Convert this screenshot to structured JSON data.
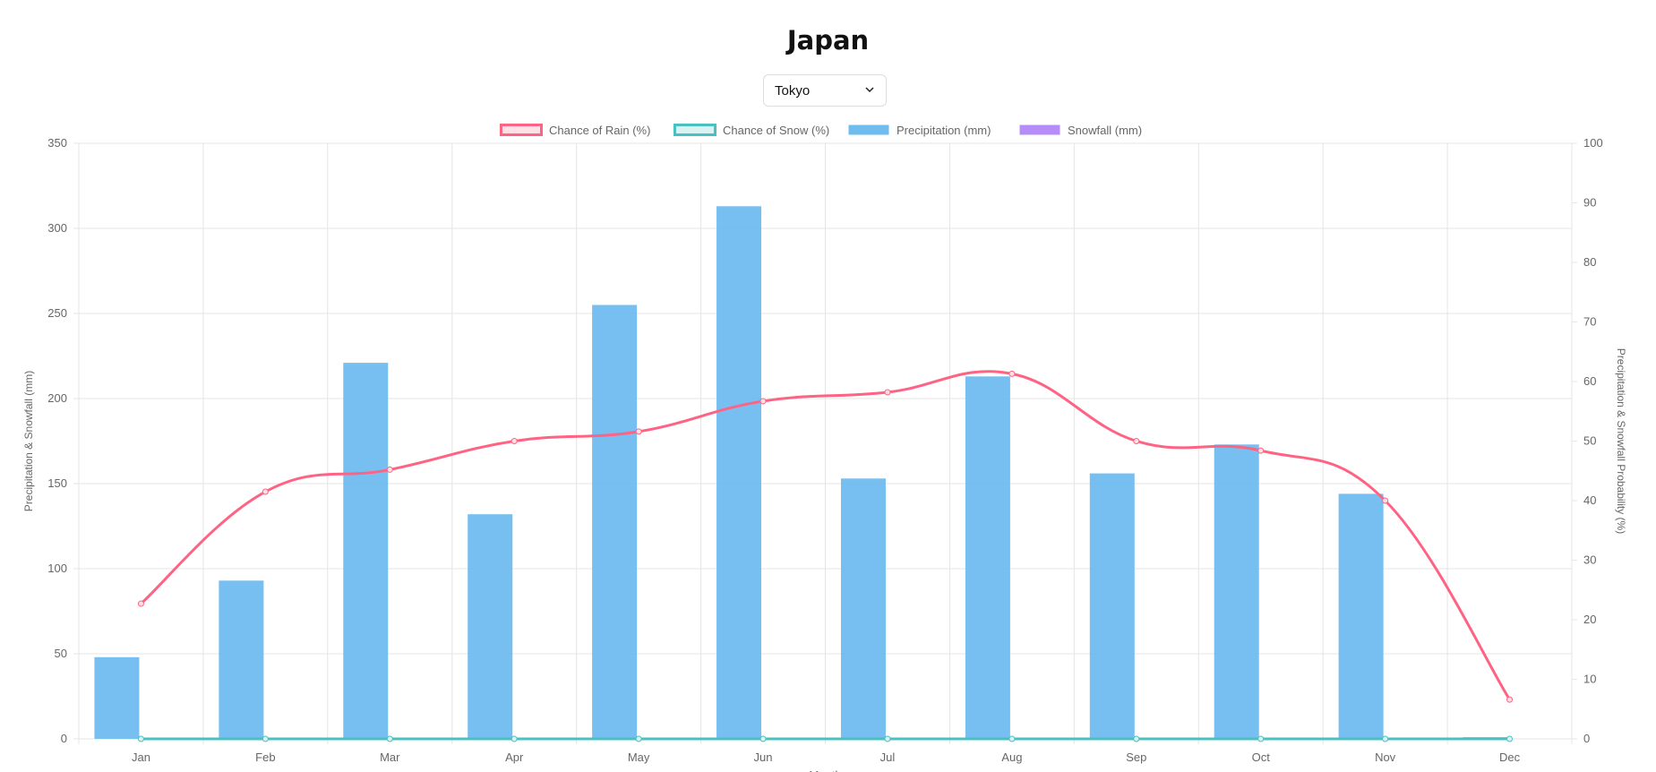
{
  "header": {
    "title": "Japan"
  },
  "city_select": {
    "value": "Tokyo"
  },
  "chart_data": {
    "type": "bar",
    "categories": [
      "Jan",
      "Feb",
      "Mar",
      "Apr",
      "May",
      "Jun",
      "Jul",
      "Aug",
      "Sep",
      "Oct",
      "Nov",
      "Dec"
    ],
    "series": [
      {
        "name": "Chance of Rain (%)",
        "type": "line",
        "axis": "right",
        "color": "#ff6384",
        "values": [
          22.7,
          41.5,
          45.2,
          50,
          51.6,
          56.7,
          58.2,
          61.3,
          50,
          48.4,
          40,
          6.6
        ]
      },
      {
        "name": "Chance of Snow (%)",
        "type": "line",
        "axis": "right",
        "color": "#4bc0c0",
        "values": [
          0,
          0,
          0,
          0,
          0,
          0,
          0,
          0,
          0,
          0,
          0,
          0
        ]
      },
      {
        "name": "Precipitation (mm)",
        "type": "bar",
        "axis": "left",
        "color": "#6fbcef",
        "values": [
          48,
          93,
          221,
          132,
          255,
          313,
          153,
          213,
          156,
          173,
          144,
          1
        ]
      },
      {
        "name": "Snowfall (mm)",
        "type": "bar",
        "axis": "left",
        "color": "#b48df8",
        "values": [
          0,
          0,
          0,
          0,
          0,
          0,
          0,
          0,
          0,
          0,
          0,
          0
        ]
      }
    ],
    "xlabel": "Month",
    "ylabel": "Precipitation & Snowfall (mm)",
    "y2label": "Precipitation & Snowfall Probability (%)",
    "ylim": [
      0,
      350
    ],
    "yticks": [
      0,
      50,
      100,
      150,
      200,
      250,
      300,
      350
    ],
    "y2lim": [
      0,
      100
    ],
    "y2ticks": [
      0,
      10,
      20,
      30,
      40,
      50,
      60,
      70,
      80,
      90,
      100
    ],
    "grid": true,
    "legend": "top-center"
  }
}
